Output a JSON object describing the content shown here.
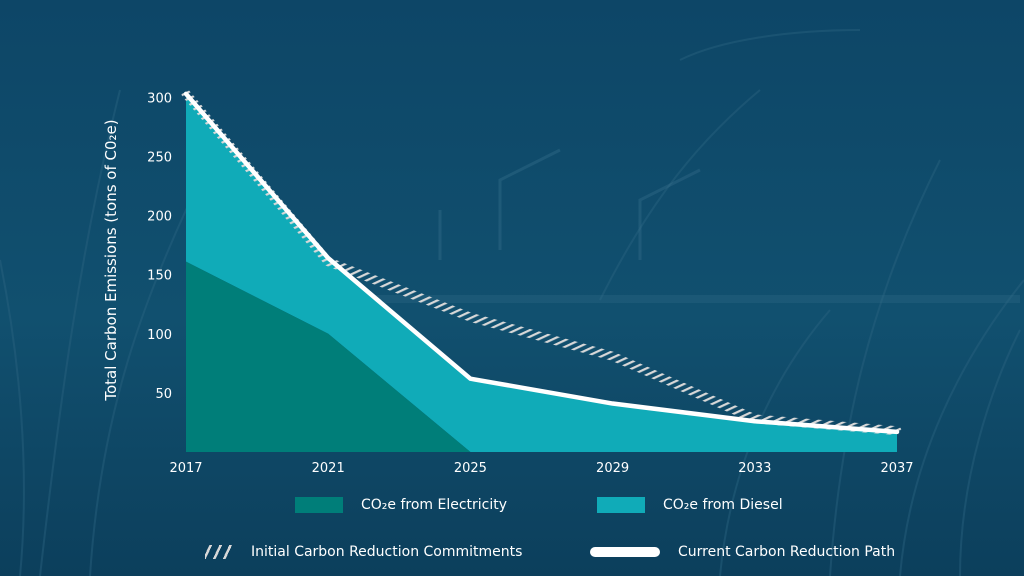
{
  "chart_data": {
    "type": "area",
    "title": "",
    "xlabel": "",
    "ylabel": "Total Carbon Emissions (tons of C0₂e)",
    "xlim": [
      2017,
      2037
    ],
    "ylim": [
      0,
      300
    ],
    "x_ticks": [
      2017,
      2021,
      2025,
      2029,
      2033,
      2037
    ],
    "y_ticks": [
      50,
      100,
      150,
      200,
      250,
      300
    ],
    "stacked": true,
    "series": [
      {
        "name": "CO₂e from Electricity",
        "kind": "area",
        "color": "#007e79",
        "x": [
          2017,
          2021,
          2025
        ],
        "values": [
          161,
          100,
          0
        ]
      },
      {
        "name": "CO₂e from Diesel",
        "kind": "area",
        "color": "#10abb8",
        "x": [
          2017,
          2021,
          2025,
          2029,
          2033,
          2037
        ],
        "values": [
          142,
          64,
          62,
          41,
          26,
          16
        ]
      },
      {
        "name": "Initial Carbon Reduction Commitments",
        "kind": "line",
        "style": "hatched",
        "color": "#d8d8d8",
        "x": [
          2017,
          2021,
          2025,
          2029,
          2033,
          2037
        ],
        "values": [
          303,
          161,
          114,
          81,
          28,
          18
        ]
      },
      {
        "name": "Current Carbon Reduction Path",
        "kind": "line",
        "style": "solid",
        "color": "#ffffff",
        "x": [
          2017,
          2021,
          2025,
          2029,
          2033,
          2037
        ],
        "values": [
          303,
          164,
          62,
          41,
          26,
          17
        ]
      }
    ],
    "legend_position": "bottom",
    "grid": false
  },
  "legend": {
    "electricity": "CO₂e from Electricity",
    "diesel": "CO₂e from Diesel",
    "initial": "Initial Carbon Reduction Commitments",
    "current": "Current Carbon Reduction Path"
  },
  "colors": {
    "background": "#0f4a6c",
    "electricity": "#007e79",
    "diesel": "#10abb8",
    "initial": "#d8d8d8",
    "current": "#ffffff"
  },
  "background_image": "blurred-waterfront-grass-photo"
}
